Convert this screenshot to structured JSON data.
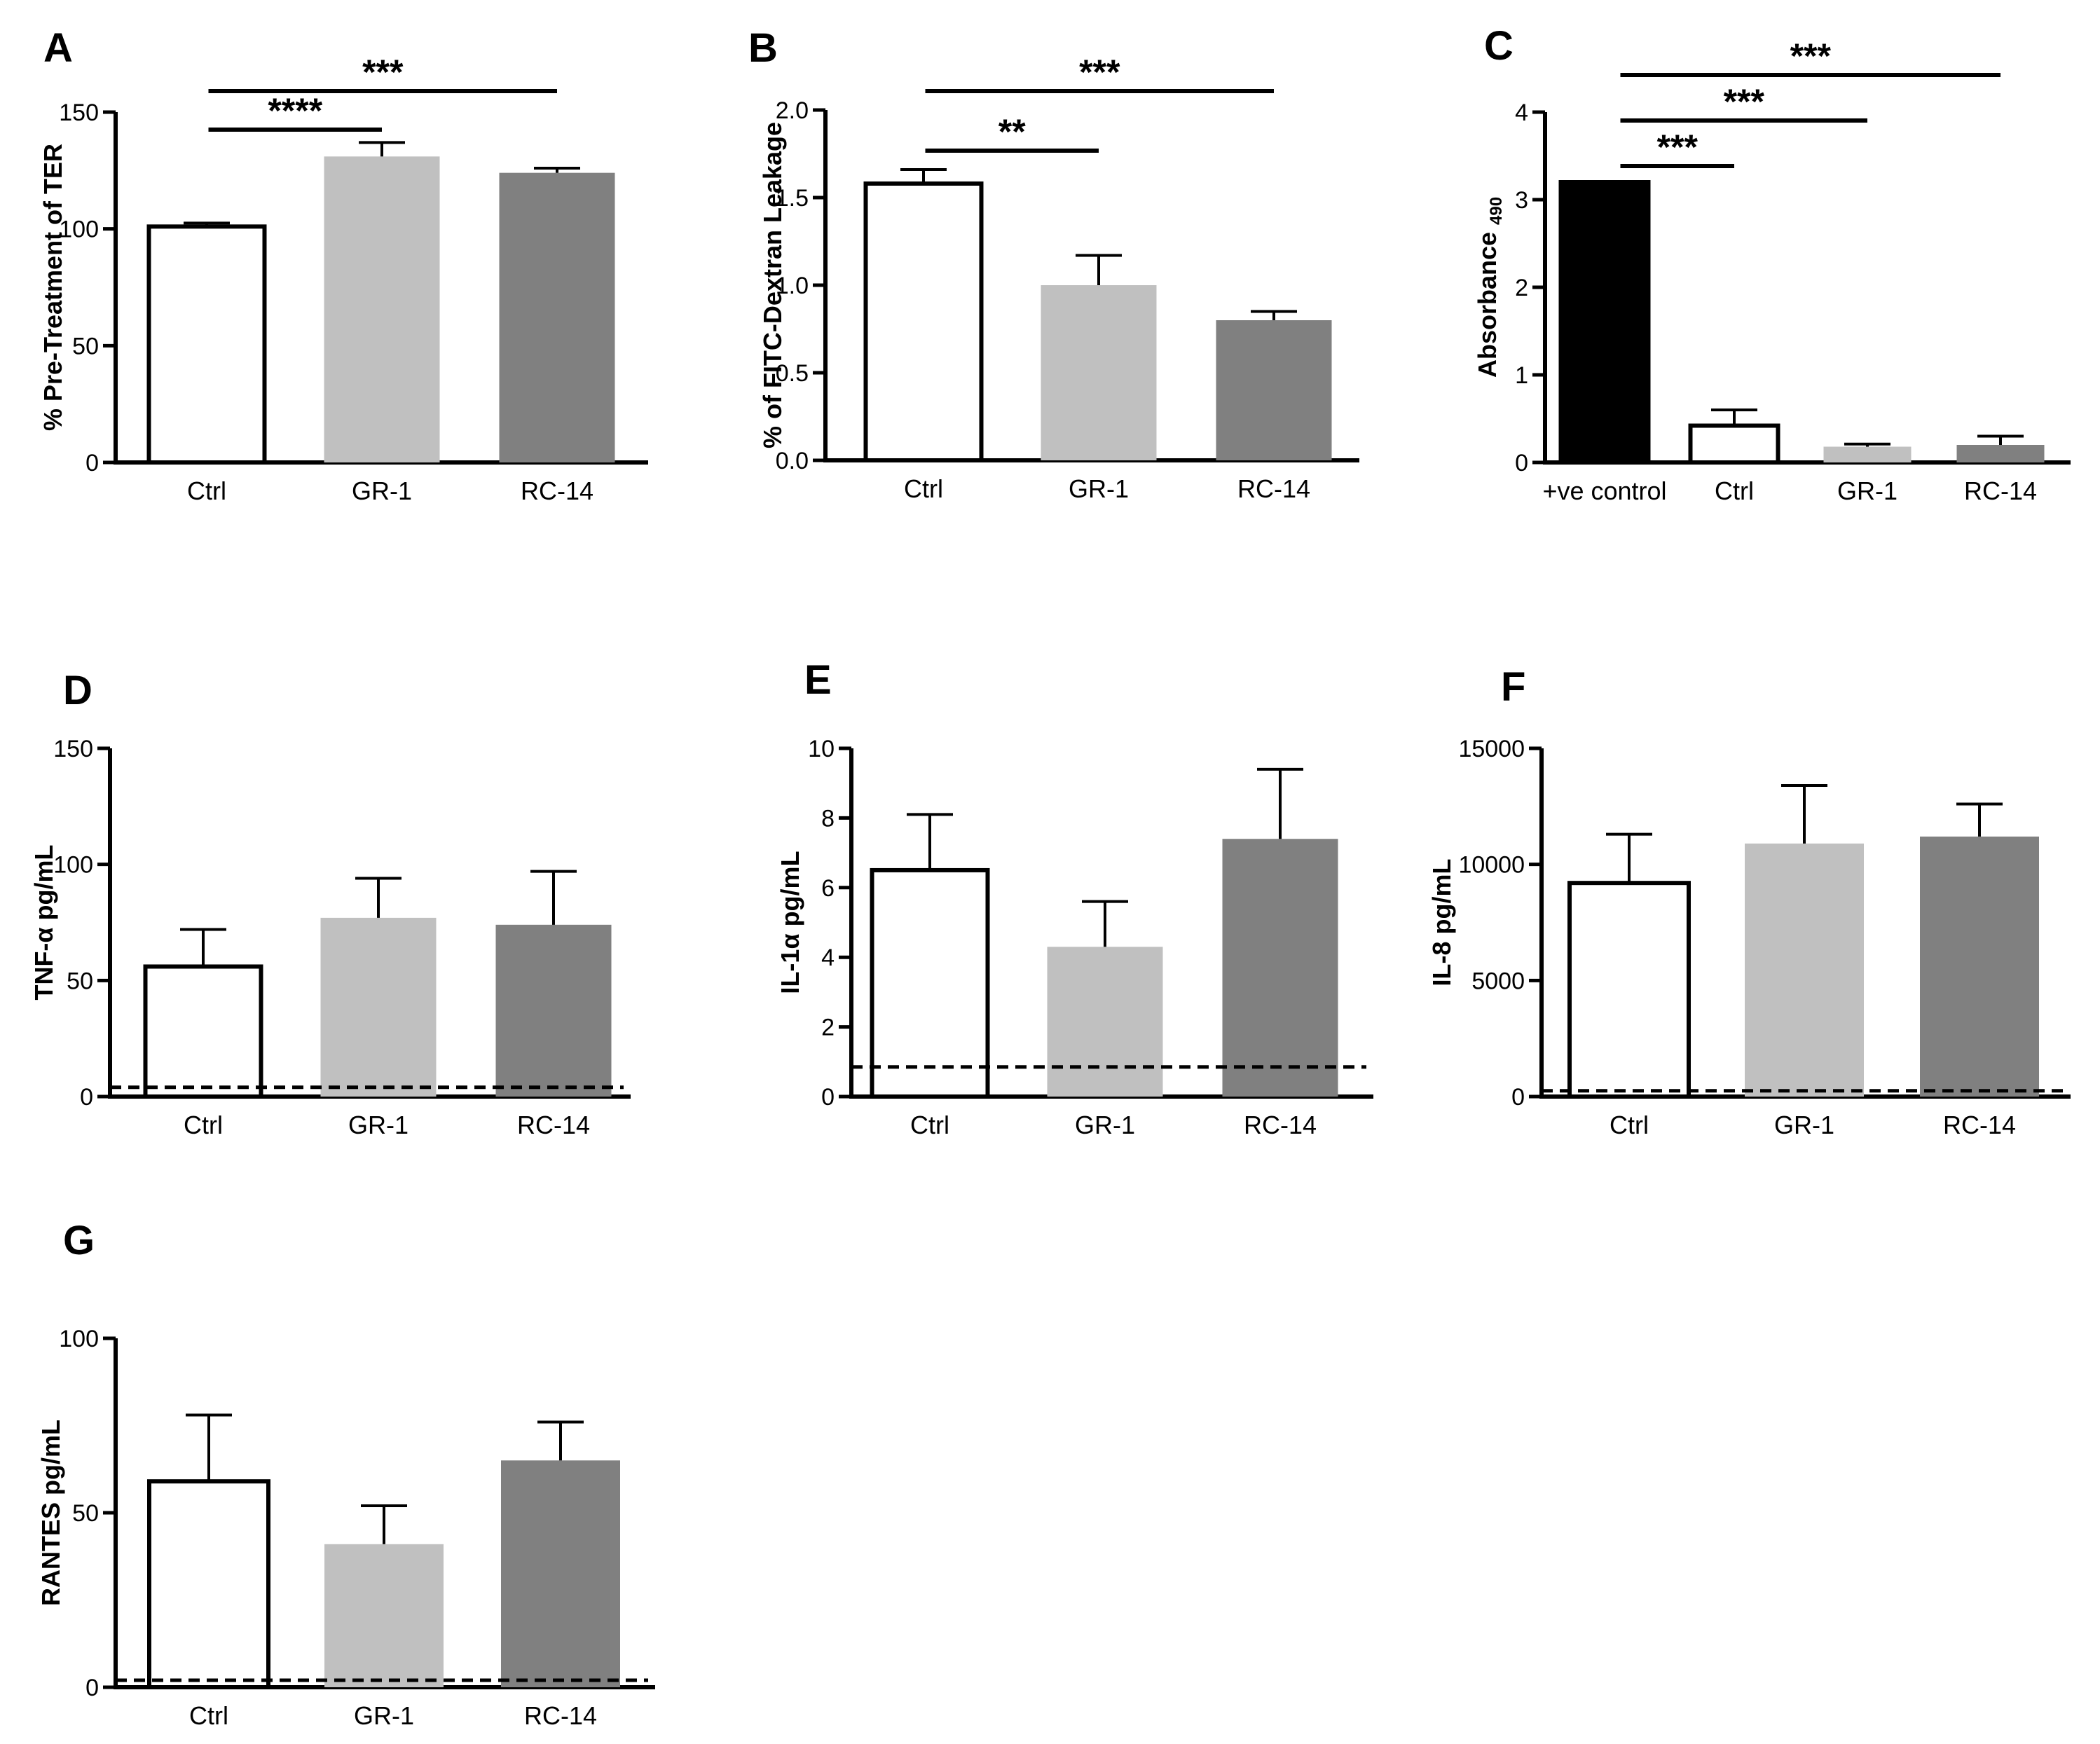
{
  "colors": {
    "white_bar": "#ffffff",
    "light_gray_bar": "#c0c0c0",
    "dark_gray_bar": "#808080",
    "black_bar": "#000000",
    "axis": "#000000"
  },
  "chart_data": [
    {
      "id": "A",
      "type": "bar",
      "panel_label": "A",
      "ylabel": "% Pre-Treatment of TER",
      "ylabel_sub": "",
      "categories": [
        "Ctrl",
        "GR-1",
        "RC-14"
      ],
      "values": [
        101,
        131,
        124
      ],
      "errors": [
        1.5,
        6,
        2
      ],
      "fills": [
        "white",
        "light",
        "dark"
      ],
      "ylim": [
        0,
        150
      ],
      "yticks": [
        0,
        50,
        100,
        150
      ],
      "ytick_labels": [
        "0",
        "50",
        "100",
        "150"
      ],
      "detection_limit": null,
      "significance": [
        {
          "from": 0,
          "to": 1,
          "label": "****"
        },
        {
          "from": 0,
          "to": 2,
          "label": "***"
        }
      ]
    },
    {
      "id": "B",
      "type": "bar",
      "panel_label": "B",
      "ylabel": "% of FITC-Dextran Leakage",
      "ylabel_sub": "",
      "categories": [
        "Ctrl",
        "GR-1",
        "RC-14"
      ],
      "values": [
        1.58,
        1.0,
        0.8
      ],
      "errors": [
        0.08,
        0.17,
        0.05
      ],
      "fills": [
        "white",
        "light",
        "dark"
      ],
      "ylim": [
        0,
        2.0
      ],
      "yticks": [
        0,
        0.5,
        1.0,
        1.5,
        2.0
      ],
      "ytick_labels": [
        "0.0",
        "0.5",
        "1.0",
        "1.5",
        "2.0"
      ],
      "detection_limit": null,
      "significance": [
        {
          "from": 0,
          "to": 1,
          "label": "**"
        },
        {
          "from": 0,
          "to": 2,
          "label": "***"
        }
      ]
    },
    {
      "id": "C",
      "type": "bar",
      "panel_label": "C",
      "ylabel": "Absorbance",
      "ylabel_sub": "490",
      "categories": [
        "+ve control",
        "Ctrl",
        "GR-1",
        "RC-14"
      ],
      "values": [
        3.2,
        0.42,
        0.18,
        0.2
      ],
      "errors": [
        0.0,
        0.18,
        0.03,
        0.1
      ],
      "fills": [
        "black",
        "white",
        "light",
        "dark"
      ],
      "ylim": [
        0,
        4
      ],
      "yticks": [
        0,
        1,
        2,
        3,
        4
      ],
      "ytick_labels": [
        "0",
        "1",
        "2",
        "3",
        "4"
      ],
      "detection_limit": null,
      "significance": [
        {
          "from": 0,
          "to": 1,
          "label": "***"
        },
        {
          "from": 0,
          "to": 2,
          "label": "***"
        },
        {
          "from": 0,
          "to": 3,
          "label": "***"
        }
      ]
    },
    {
      "id": "D",
      "type": "bar",
      "panel_label": "D",
      "ylabel": "TNF-α pg/mL",
      "ylabel_sub": "",
      "categories": [
        "Ctrl",
        "GR-1",
        "RC-14"
      ],
      "values": [
        56,
        77,
        74
      ],
      "errors": [
        16,
        17,
        23
      ],
      "fills": [
        "white",
        "light",
        "dark"
      ],
      "ylim": [
        0,
        150
      ],
      "yticks": [
        0,
        50,
        100,
        150
      ],
      "ytick_labels": [
        "0",
        "50",
        "100",
        "150"
      ],
      "detection_limit": 4,
      "significance": []
    },
    {
      "id": "E",
      "type": "bar",
      "panel_label": "E",
      "ylabel": "IL-1α pg/mL",
      "ylabel_sub": "",
      "categories": [
        "Ctrl",
        "GR-1",
        "RC-14"
      ],
      "values": [
        6.5,
        4.3,
        7.4
      ],
      "errors": [
        1.6,
        1.3,
        2.0
      ],
      "fills": [
        "white",
        "light",
        "dark"
      ],
      "ylim": [
        0,
        10
      ],
      "yticks": [
        0,
        2,
        4,
        6,
        8,
        10
      ],
      "ytick_labels": [
        "0",
        "2",
        "4",
        "6",
        "8",
        "10"
      ],
      "detection_limit": 0.85,
      "significance": []
    },
    {
      "id": "F",
      "type": "bar",
      "panel_label": "F",
      "ylabel": "IL-8 pg/mL",
      "ylabel_sub": "",
      "categories": [
        "Ctrl",
        "GR-1",
        "RC-14"
      ],
      "values": [
        9200,
        10900,
        11200
      ],
      "errors": [
        2100,
        2500,
        1400
      ],
      "fills": [
        "white",
        "light",
        "dark"
      ],
      "ylim": [
        0,
        15000
      ],
      "yticks": [
        0,
        5000,
        10000,
        15000
      ],
      "ytick_labels": [
        "0",
        "5000",
        "10000",
        "15000"
      ],
      "detection_limit": 250,
      "significance": []
    },
    {
      "id": "G",
      "type": "bar",
      "panel_label": "G",
      "ylabel": "RANTES pg/mL",
      "ylabel_sub": "",
      "categories": [
        "Ctrl",
        "GR-1",
        "RC-14"
      ],
      "values": [
        59,
        41,
        65
      ],
      "errors": [
        19,
        11,
        11
      ],
      "fills": [
        "white",
        "light",
        "dark"
      ],
      "ylim": [
        0,
        100
      ],
      "yticks": [
        0,
        50,
        100
      ],
      "ytick_labels": [
        "0",
        "50",
        "100"
      ],
      "detection_limit": 2,
      "significance": []
    }
  ]
}
